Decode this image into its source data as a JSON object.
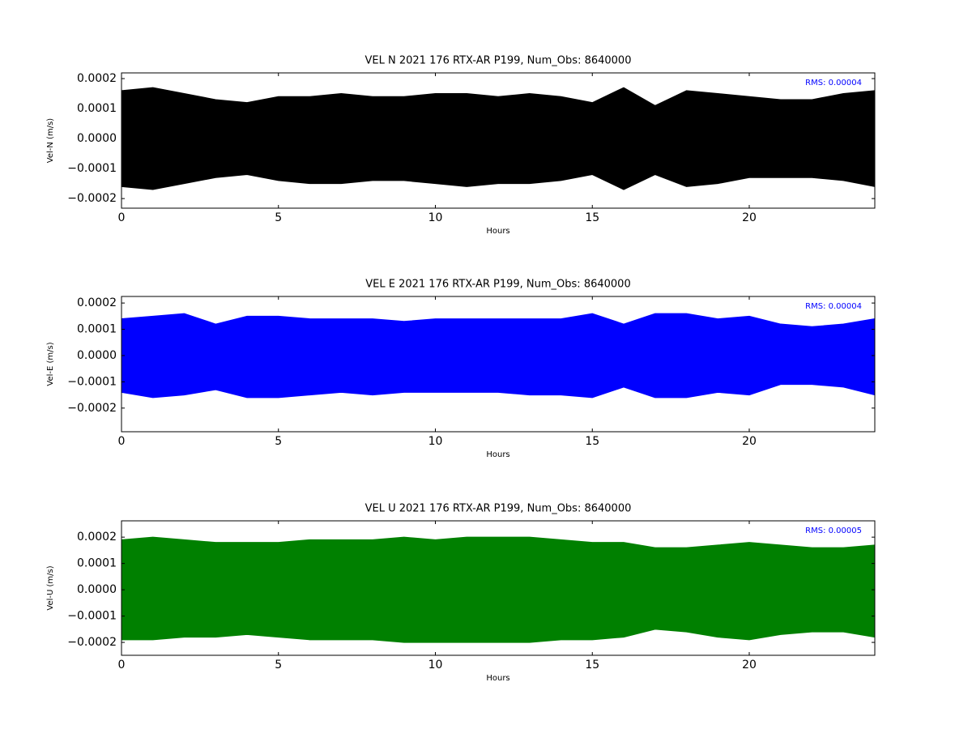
{
  "chart_data": [
    {
      "type": "area",
      "title": "VEL N 2021 176 RTX-AR  P199, Num_Obs: 8640000",
      "x_label": "Hours",
      "y_label": "Vel-N (m/s)",
      "annotation": "RMS:  0.00004",
      "annotation_color": "#0000ff",
      "color": "#000000",
      "xlim": [
        0,
        24
      ],
      "ylim": [
        -0.000232,
        0.000219
      ],
      "xticks": [
        0,
        5,
        10,
        15,
        20
      ],
      "yticks": [
        {
          "value": -0.0002,
          "label": "−0.0002"
        },
        {
          "value": -0.0001,
          "label": "−0.0001"
        },
        {
          "value": 0,
          "label": "0.0000"
        },
        0.0001,
        0.0002
      ],
      "x": [
        0,
        1,
        2,
        3,
        4,
        5,
        6,
        7,
        8,
        9,
        10,
        11,
        12,
        13,
        14,
        15,
        16,
        17,
        18,
        19,
        20,
        21,
        22,
        23,
        24
      ],
      "upper": [
        0.00016,
        0.00017,
        0.00015,
        0.00013,
        0.00012,
        0.00014,
        0.00014,
        0.00015,
        0.00014,
        0.00014,
        0.00015,
        0.00015,
        0.00014,
        0.00015,
        0.00014,
        0.00012,
        0.00017,
        0.00011,
        0.00016,
        0.00015,
        0.00014,
        0.00013,
        0.00013,
        0.00015,
        0.00016
      ],
      "lower": [
        -0.00016,
        -0.00017,
        -0.00015,
        -0.00013,
        -0.00012,
        -0.00014,
        -0.00015,
        -0.00015,
        -0.00014,
        -0.00014,
        -0.00015,
        -0.00016,
        -0.00015,
        -0.00015,
        -0.00014,
        -0.00012,
        -0.00017,
        -0.00012,
        -0.00016,
        -0.00015,
        -0.00013,
        -0.00013,
        -0.00013,
        -0.00014,
        -0.00016
      ]
    },
    {
      "type": "area",
      "title": "VEL E 2021 176 RTX-AR  P199, Num_Obs: 8640000",
      "x_label": "Hours",
      "y_label": "Vel-E (m/s)",
      "annotation": "RMS:  0.00004",
      "annotation_color": "#0000ff",
      "color": "#0000ff",
      "xlim": [
        0,
        24
      ],
      "ylim": [
        -0.00029,
        0.000225
      ],
      "xticks": [
        0,
        5,
        10,
        15,
        20
      ],
      "yticks": [
        {
          "value": -0.0002,
          "label": "−0.0002"
        },
        {
          "value": -0.0001,
          "label": "−0.0001"
        },
        {
          "value": 0,
          "label": "0.0000"
        },
        0.0001,
        0.0002
      ],
      "x": [
        0,
        1,
        2,
        3,
        4,
        5,
        6,
        7,
        8,
        9,
        10,
        11,
        12,
        13,
        14,
        15,
        16,
        17,
        18,
        19,
        20,
        21,
        22,
        23,
        24
      ],
      "upper": [
        0.00014,
        0.00015,
        0.00016,
        0.00012,
        0.00015,
        0.00015,
        0.00014,
        0.00014,
        0.00014,
        0.00013,
        0.00014,
        0.00014,
        0.00014,
        0.00014,
        0.00014,
        0.00016,
        0.00012,
        0.00016,
        0.00016,
        0.00014,
        0.00015,
        0.00012,
        0.00011,
        0.00012,
        0.00014
      ],
      "lower": [
        -0.00014,
        -0.00016,
        -0.00015,
        -0.00013,
        -0.00016,
        -0.00016,
        -0.00015,
        -0.00014,
        -0.00015,
        -0.00014,
        -0.00014,
        -0.00014,
        -0.00014,
        -0.00015,
        -0.00015,
        -0.00016,
        -0.00012,
        -0.00016,
        -0.00016,
        -0.00014,
        -0.00015,
        -0.00011,
        -0.00011,
        -0.00012,
        -0.00015
      ]
    },
    {
      "type": "area",
      "title": "VEL U 2021 176 RTX-AR  P199, Num_Obs: 8640000",
      "x_label": "Hours",
      "y_label": "Vel-U (m/s)",
      "annotation": "RMS:  0.00005",
      "annotation_color": "#0000ff",
      "color": "#008000",
      "xlim": [
        0,
        24
      ],
      "ylim": [
        -0.000249,
        0.000262
      ],
      "xticks": [
        0,
        5,
        10,
        15,
        20
      ],
      "yticks": [
        {
          "value": -0.0002,
          "label": "−0.0002"
        },
        {
          "value": -0.0001,
          "label": "−0.0001"
        },
        {
          "value": 0,
          "label": "0.0000"
        },
        0.0001,
        0.0002
      ],
      "x": [
        0,
        1,
        2,
        3,
        4,
        5,
        6,
        7,
        8,
        9,
        10,
        11,
        12,
        13,
        14,
        15,
        16,
        17,
        18,
        19,
        20,
        21,
        22,
        23,
        24
      ],
      "upper": [
        0.00019,
        0.0002,
        0.00019,
        0.00018,
        0.00018,
        0.00018,
        0.00019,
        0.00019,
        0.00019,
        0.0002,
        0.00019,
        0.0002,
        0.0002,
        0.0002,
        0.00019,
        0.00018,
        0.00018,
        0.00016,
        0.00016,
        0.00017,
        0.00018,
        0.00017,
        0.00016,
        0.00016,
        0.00017
      ],
      "lower": [
        -0.00019,
        -0.00019,
        -0.00018,
        -0.00018,
        -0.00017,
        -0.00018,
        -0.00019,
        -0.00019,
        -0.00019,
        -0.0002,
        -0.0002,
        -0.0002,
        -0.0002,
        -0.0002,
        -0.00019,
        -0.00019,
        -0.00018,
        -0.00015,
        -0.00016,
        -0.00018,
        -0.00019,
        -0.00017,
        -0.00016,
        -0.00016,
        -0.00018
      ]
    }
  ]
}
